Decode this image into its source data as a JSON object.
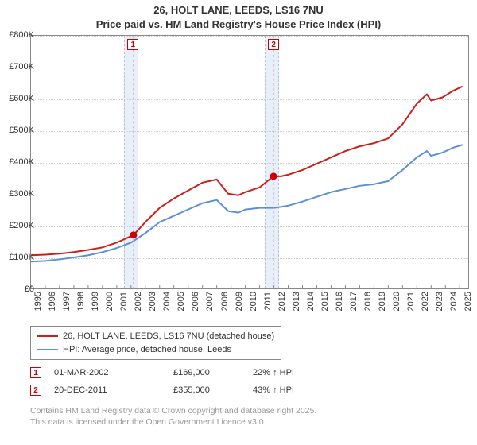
{
  "title_line1": "26, HOLT LANE, LEEDS, LS16 7NU",
  "title_line2": "Price paid vs. HM Land Registry's House Price Index (HPI)",
  "chart": {
    "type": "line",
    "background_color": "#ffffff",
    "grid_color": "#cccccc",
    "plot_border_color": "#888888",
    "x": {
      "min": 1995,
      "max": 2025.6,
      "step": 1,
      "label_fontsize": 11
    },
    "y": {
      "min": 0,
      "max": 800000,
      "step": 100000,
      "tick_labels": [
        "£0",
        "£100K",
        "£200K",
        "£300K",
        "£400K",
        "£500K",
        "£600K",
        "£700K",
        "£800K"
      ],
      "label_fontsize": 11
    },
    "shade_color": "rgba(200,220,245,0.45)",
    "shade_ranges": [
      [
        2001.5,
        2002.5
      ],
      [
        2011.3,
        2012.3
      ]
    ],
    "series": [
      {
        "name": "26, HOLT LANE, LEEDS, LS16 7NU (detached house)",
        "color": "#cc1f1a",
        "line_width": 2,
        "points": [
          [
            1995,
            105000
          ],
          [
            1996,
            107000
          ],
          [
            1997,
            110000
          ],
          [
            1998,
            115000
          ],
          [
            1999,
            122000
          ],
          [
            2000,
            130000
          ],
          [
            2001,
            145000
          ],
          [
            2002.17,
            169000
          ],
          [
            2003,
            210000
          ],
          [
            2004,
            255000
          ],
          [
            2005,
            285000
          ],
          [
            2006,
            310000
          ],
          [
            2007,
            335000
          ],
          [
            2008,
            345000
          ],
          [
            2008.8,
            300000
          ],
          [
            2009.5,
            295000
          ],
          [
            2010,
            305000
          ],
          [
            2011,
            320000
          ],
          [
            2011.97,
            355000
          ],
          [
            2012.5,
            355000
          ],
          [
            2013,
            360000
          ],
          [
            2014,
            375000
          ],
          [
            2015,
            395000
          ],
          [
            2016,
            415000
          ],
          [
            2017,
            435000
          ],
          [
            2018,
            450000
          ],
          [
            2019,
            460000
          ],
          [
            2020,
            475000
          ],
          [
            2021,
            520000
          ],
          [
            2022,
            585000
          ],
          [
            2022.7,
            615000
          ],
          [
            2023,
            595000
          ],
          [
            2023.8,
            605000
          ],
          [
            2024.5,
            625000
          ],
          [
            2025.2,
            640000
          ]
        ]
      },
      {
        "name": "HPI: Average price, detached house, Leeds",
        "color": "#5b8fd6",
        "line_width": 2,
        "points": [
          [
            1995,
            85000
          ],
          [
            1996,
            87000
          ],
          [
            1997,
            92000
          ],
          [
            1998,
            98000
          ],
          [
            1999,
            105000
          ],
          [
            2000,
            115000
          ],
          [
            2001,
            128000
          ],
          [
            2002,
            145000
          ],
          [
            2003,
            175000
          ],
          [
            2004,
            210000
          ],
          [
            2005,
            230000
          ],
          [
            2006,
            250000
          ],
          [
            2007,
            270000
          ],
          [
            2008,
            280000
          ],
          [
            2008.8,
            245000
          ],
          [
            2009.5,
            240000
          ],
          [
            2010,
            250000
          ],
          [
            2011,
            255000
          ],
          [
            2012,
            255000
          ],
          [
            2013,
            262000
          ],
          [
            2014,
            275000
          ],
          [
            2015,
            290000
          ],
          [
            2016,
            305000
          ],
          [
            2017,
            315000
          ],
          [
            2018,
            325000
          ],
          [
            2019,
            330000
          ],
          [
            2020,
            340000
          ],
          [
            2021,
            375000
          ],
          [
            2022,
            415000
          ],
          [
            2022.7,
            435000
          ],
          [
            2023,
            420000
          ],
          [
            2023.8,
            430000
          ],
          [
            2024.5,
            445000
          ],
          [
            2025.2,
            455000
          ]
        ]
      }
    ],
    "sale_markers": [
      {
        "label": "1",
        "x": 2002.17,
        "y": 169000,
        "box_y": 770000
      },
      {
        "label": "2",
        "x": 2011.97,
        "y": 355000,
        "box_y": 770000
      }
    ]
  },
  "legend": {
    "border_color": "#888888",
    "fontsize": 11,
    "items": [
      {
        "color": "#cc1f1a",
        "label": "26, HOLT LANE, LEEDS, LS16 7NU (detached house)"
      },
      {
        "color": "#5b8fd6",
        "label": "HPI: Average price, detached house, Leeds"
      }
    ]
  },
  "sales": [
    {
      "marker": "1",
      "date": "01-MAR-2002",
      "price": "£169,000",
      "pct": "22% ↑ HPI"
    },
    {
      "marker": "2",
      "date": "20-DEC-2011",
      "price": "£355,000",
      "pct": "43% ↑ HPI"
    }
  ],
  "footer_line1": "Contains HM Land Registry data © Crown copyright and database right 2025.",
  "footer_line2": "This data is licensed under the Open Government Licence v3.0."
}
